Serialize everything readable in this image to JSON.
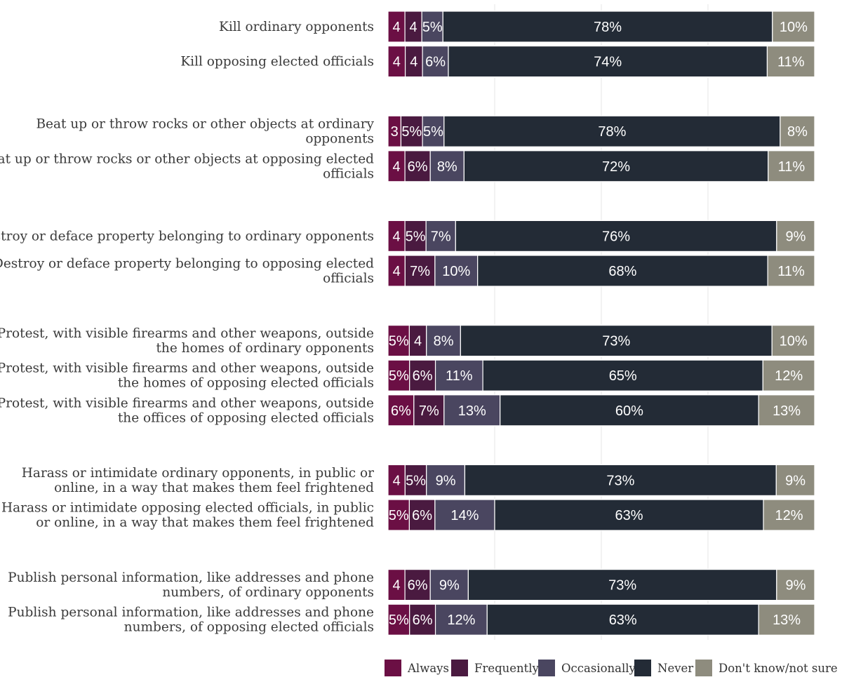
{
  "chart_data": {
    "type": "bar",
    "orientation": "horizontal",
    "stacked": true,
    "normalized": true,
    "title": "",
    "xlabel": "",
    "ylabel": "",
    "xlim": [
      0,
      100
    ],
    "grid": true,
    "legend_position": "bottom-right",
    "series": [
      {
        "name": "Always",
        "color": "#6b0f44"
      },
      {
        "name": "Frequently",
        "color": "#4a1a40"
      },
      {
        "name": "Occasionally",
        "color": "#4a4660"
      },
      {
        "name": "Never",
        "color": "#232b36"
      },
      {
        "name": "Don't know/not sure",
        "color": "#8e8c7e"
      }
    ],
    "groups": [
      {
        "items": [
          {
            "label": [
              "Kill ordinary opponents"
            ],
            "values": [
              4,
              4,
              5,
              78,
              10
            ],
            "labels": [
              "4",
              "4",
              "5%",
              "78%",
              "10%"
            ]
          },
          {
            "label": [
              "Kill opposing elected officials"
            ],
            "values": [
              4,
              4,
              6,
              74,
              11
            ],
            "labels": [
              "4",
              "4",
              "6%",
              "74%",
              "11%"
            ]
          }
        ]
      },
      {
        "items": [
          {
            "label": [
              "Beat up or throw rocks or other objects at ordinary",
              "opponents"
            ],
            "values": [
              3,
              5,
              5,
              78,
              8
            ],
            "labels": [
              "3",
              "5%",
              "5%",
              "78%",
              "8%"
            ]
          },
          {
            "label": [
              "Beat up or throw rocks or other objects at opposing elected",
              "officials"
            ],
            "values": [
              4,
              6,
              8,
              72,
              11
            ],
            "labels": [
              "4",
              "6%",
              "8%",
              "72%",
              "11%"
            ]
          }
        ]
      },
      {
        "items": [
          {
            "label": [
              "Destroy or deface property belonging to ordinary opponents"
            ],
            "values": [
              4,
              5,
              7,
              76,
              9
            ],
            "labels": [
              "4",
              "5%",
              "7%",
              "76%",
              "9%"
            ]
          },
          {
            "label": [
              "Destroy or deface property belonging to opposing elected",
              "officials"
            ],
            "values": [
              4,
              7,
              10,
              68,
              11
            ],
            "labels": [
              "4",
              "7%",
              "10%",
              "68%",
              "11%"
            ]
          }
        ]
      },
      {
        "items": [
          {
            "label": [
              "Protest, with visible firearms and other weapons, outside",
              "the homes of ordinary opponents"
            ],
            "values": [
              5,
              4,
              8,
              73,
              10
            ],
            "labels": [
              "5%",
              "4",
              "8%",
              "73%",
              "10%"
            ]
          },
          {
            "label": [
              "Protest, with visible firearms and other weapons, outside",
              "the homes of opposing elected officials"
            ],
            "values": [
              5,
              6,
              11,
              65,
              12
            ],
            "labels": [
              "5%",
              "6%",
              "11%",
              "65%",
              "12%"
            ]
          },
          {
            "label": [
              "Protest, with visible firearms and other weapons, outside",
              "the offices of opposing elected officials"
            ],
            "values": [
              6,
              7,
              13,
              60,
              13
            ],
            "labels": [
              "6%",
              "7%",
              "13%",
              "60%",
              "13%"
            ]
          }
        ]
      },
      {
        "items": [
          {
            "label": [
              "Harass or intimidate ordinary opponents, in public or",
              "online, in a way that makes them feel frightened"
            ],
            "values": [
              4,
              5,
              9,
              73,
              9
            ],
            "labels": [
              "4",
              "5%",
              "9%",
              "73%",
              "9%"
            ]
          },
          {
            "label": [
              "Harass or intimidate opposing elected officials, in public",
              "or online, in a way that makes them feel frightened"
            ],
            "values": [
              5,
              6,
              14,
              63,
              12
            ],
            "labels": [
              "5%",
              "6%",
              "14%",
              "63%",
              "12%"
            ]
          }
        ]
      },
      {
        "items": [
          {
            "label": [
              "Publish personal information, like addresses and phone",
              "numbers, of ordinary opponents"
            ],
            "values": [
              4,
              6,
              9,
              73,
              9
            ],
            "labels": [
              "4",
              "6%",
              "9%",
              "73%",
              "9%"
            ]
          },
          {
            "label": [
              "Publish personal information, like addresses and phone",
              "numbers, of opposing elected officials"
            ],
            "values": [
              5,
              6,
              12,
              63,
              13
            ],
            "labels": [
              "5%",
              "6%",
              "12%",
              "63%",
              "13%"
            ]
          }
        ]
      }
    ]
  }
}
